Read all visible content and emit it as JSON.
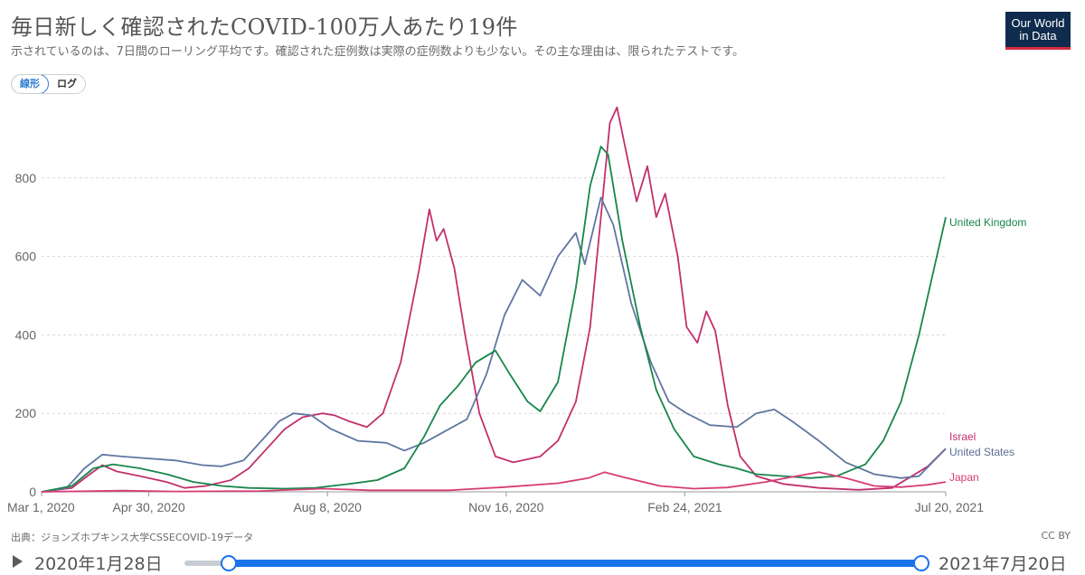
{
  "header": {
    "title": "毎日新しく確認されたCOVID-100万人あたり19件",
    "subtitle": "示されているのは、7日間のローリング平均です。確認された症例数は実際の症例数よりも少ない。その主な理由は、限られたテストです。",
    "logo_line1": "Our World",
    "logo_line2": "in Data"
  },
  "scale_toggle": {
    "linear_label": "線形",
    "log_label": "ログ",
    "active": "linear"
  },
  "footer": {
    "source": "出典：ジョンズホプキンス大学CSSECOVID-19データ",
    "license": "CC BY"
  },
  "timeline": {
    "start_label": "2020年1月28日",
    "end_label": "2021年7月20日"
  },
  "colors": {
    "United Kingdom": "#18864b",
    "Israel": "#c2306c",
    "United States": "#6076a0",
    "Japan": "#d73c76",
    "grid": "#d8d8d8",
    "axis_text": "#666666"
  },
  "chart_data": {
    "type": "line",
    "title": "毎日新しく確認されたCOVID-100万人あたり19件",
    "xlabel": "",
    "ylabel": "",
    "x_range": [
      "2020-03-01",
      "2021-07-20"
    ],
    "ylim": [
      0,
      1000
    ],
    "y_ticks": [
      0,
      200,
      400,
      600,
      800
    ],
    "x_ticks": [
      "Mar 1, 2020",
      "Apr 30, 2020",
      "Aug 8, 2020",
      "Nov 16, 2020",
      "Feb 24, 2021",
      "Jul 20, 2021"
    ],
    "x_tick_dates": [
      "2020-03-01",
      "2020-04-30",
      "2020-08-08",
      "2020-11-16",
      "2021-02-24",
      "2021-07-20"
    ],
    "grid": "horizontal-dashed",
    "legend": "inline-end-labels",
    "series": [
      {
        "name": "Israel",
        "points": [
          [
            "2020-03-01",
            0
          ],
          [
            "2020-03-18",
            10
          ],
          [
            "2020-03-28",
            45
          ],
          [
            "2020-04-04",
            68
          ],
          [
            "2020-04-12",
            52
          ],
          [
            "2020-04-25",
            40
          ],
          [
            "2020-05-10",
            25
          ],
          [
            "2020-05-20",
            10
          ],
          [
            "2020-06-01",
            15
          ],
          [
            "2020-06-15",
            30
          ],
          [
            "2020-06-25",
            60
          ],
          [
            "2020-07-05",
            110
          ],
          [
            "2020-07-15",
            160
          ],
          [
            "2020-07-25",
            190
          ],
          [
            "2020-08-05",
            200
          ],
          [
            "2020-08-12",
            195
          ],
          [
            "2020-08-20",
            180
          ],
          [
            "2020-08-30",
            165
          ],
          [
            "2020-09-08",
            200
          ],
          [
            "2020-09-18",
            330
          ],
          [
            "2020-09-28",
            560
          ],
          [
            "2020-10-04",
            720
          ],
          [
            "2020-10-08",
            640
          ],
          [
            "2020-10-12",
            670
          ],
          [
            "2020-10-18",
            570
          ],
          [
            "2020-10-24",
            400
          ],
          [
            "2020-11-01",
            200
          ],
          [
            "2020-11-10",
            90
          ],
          [
            "2020-11-20",
            75
          ],
          [
            "2020-12-05",
            90
          ],
          [
            "2020-12-15",
            130
          ],
          [
            "2020-12-25",
            230
          ],
          [
            "2021-01-02",
            420
          ],
          [
            "2021-01-08",
            700
          ],
          [
            "2021-01-13",
            940
          ],
          [
            "2021-01-17",
            980
          ],
          [
            "2021-01-22",
            870
          ],
          [
            "2021-01-28",
            740
          ],
          [
            "2021-02-03",
            830
          ],
          [
            "2021-02-08",
            700
          ],
          [
            "2021-02-13",
            760
          ],
          [
            "2021-02-20",
            600
          ],
          [
            "2021-02-25",
            420
          ],
          [
            "2021-03-03",
            380
          ],
          [
            "2021-03-08",
            460
          ],
          [
            "2021-03-13",
            410
          ],
          [
            "2021-03-20",
            220
          ],
          [
            "2021-03-27",
            90
          ],
          [
            "2021-04-05",
            40
          ],
          [
            "2021-04-20",
            20
          ],
          [
            "2021-05-10",
            10
          ],
          [
            "2021-06-01",
            5
          ],
          [
            "2021-06-20",
            10
          ],
          [
            "2021-07-01",
            40
          ],
          [
            "2021-07-10",
            65
          ],
          [
            "2021-07-20",
            110
          ]
        ]
      },
      {
        "name": "United States",
        "points": [
          [
            "2020-03-01",
            0
          ],
          [
            "2020-03-15",
            10
          ],
          [
            "2020-03-25",
            60
          ],
          [
            "2020-04-04",
            95
          ],
          [
            "2020-04-15",
            90
          ],
          [
            "2020-04-30",
            85
          ],
          [
            "2020-05-15",
            80
          ],
          [
            "2020-05-30",
            68
          ],
          [
            "2020-06-10",
            65
          ],
          [
            "2020-06-22",
            80
          ],
          [
            "2020-07-02",
            130
          ],
          [
            "2020-07-12",
            180
          ],
          [
            "2020-07-20",
            200
          ],
          [
            "2020-07-30",
            195
          ],
          [
            "2020-08-10",
            160
          ],
          [
            "2020-08-25",
            130
          ],
          [
            "2020-09-10",
            125
          ],
          [
            "2020-09-20",
            105
          ],
          [
            "2020-10-01",
            125
          ],
          [
            "2020-10-15",
            160
          ],
          [
            "2020-10-25",
            185
          ],
          [
            "2020-11-05",
            300
          ],
          [
            "2020-11-15",
            450
          ],
          [
            "2020-11-25",
            540
          ],
          [
            "2020-12-05",
            500
          ],
          [
            "2020-12-15",
            600
          ],
          [
            "2020-12-25",
            660
          ],
          [
            "2020-12-30",
            580
          ],
          [
            "2021-01-08",
            750
          ],
          [
            "2021-01-15",
            680
          ],
          [
            "2021-01-25",
            480
          ],
          [
            "2021-02-05",
            330
          ],
          [
            "2021-02-15",
            230
          ],
          [
            "2021-02-25",
            200
          ],
          [
            "2021-03-10",
            170
          ],
          [
            "2021-03-25",
            165
          ],
          [
            "2021-04-05",
            200
          ],
          [
            "2021-04-15",
            210
          ],
          [
            "2021-04-25",
            180
          ],
          [
            "2021-05-10",
            130
          ],
          [
            "2021-05-25",
            75
          ],
          [
            "2021-06-10",
            45
          ],
          [
            "2021-06-25",
            35
          ],
          [
            "2021-07-05",
            40
          ],
          [
            "2021-07-20",
            110
          ]
        ]
      },
      {
        "name": "United Kingdom",
        "points": [
          [
            "2020-03-01",
            0
          ],
          [
            "2020-03-18",
            15
          ],
          [
            "2020-03-30",
            60
          ],
          [
            "2020-04-10",
            70
          ],
          [
            "2020-04-25",
            60
          ],
          [
            "2020-05-10",
            45
          ],
          [
            "2020-05-25",
            25
          ],
          [
            "2020-06-10",
            15
          ],
          [
            "2020-06-25",
            10
          ],
          [
            "2020-07-15",
            8
          ],
          [
            "2020-08-01",
            10
          ],
          [
            "2020-08-20",
            20
          ],
          [
            "2020-09-05",
            30
          ],
          [
            "2020-09-20",
            60
          ],
          [
            "2020-10-01",
            140
          ],
          [
            "2020-10-10",
            220
          ],
          [
            "2020-10-20",
            270
          ],
          [
            "2020-10-30",
            330
          ],
          [
            "2020-11-10",
            360
          ],
          [
            "2020-11-18",
            300
          ],
          [
            "2020-11-28",
            230
          ],
          [
            "2020-12-05",
            205
          ],
          [
            "2020-12-15",
            280
          ],
          [
            "2020-12-25",
            520
          ],
          [
            "2021-01-02",
            780
          ],
          [
            "2021-01-08",
            880
          ],
          [
            "2021-01-12",
            860
          ],
          [
            "2021-01-20",
            640
          ],
          [
            "2021-01-30",
            420
          ],
          [
            "2021-02-08",
            260
          ],
          [
            "2021-02-18",
            160
          ],
          [
            "2021-03-01",
            90
          ],
          [
            "2021-03-15",
            70
          ],
          [
            "2021-03-25",
            60
          ],
          [
            "2021-04-05",
            45
          ],
          [
            "2021-04-20",
            40
          ],
          [
            "2021-05-05",
            35
          ],
          [
            "2021-05-20",
            40
          ],
          [
            "2021-06-05",
            70
          ],
          [
            "2021-06-15",
            130
          ],
          [
            "2021-06-25",
            230
          ],
          [
            "2021-07-05",
            400
          ],
          [
            "2021-07-15",
            600
          ],
          [
            "2021-07-20",
            700
          ]
        ]
      },
      {
        "name": "Japan",
        "points": [
          [
            "2020-03-01",
            0
          ],
          [
            "2020-04-15",
            3
          ],
          [
            "2020-05-15",
            1
          ],
          [
            "2020-07-01",
            2
          ],
          [
            "2020-08-05",
            8
          ],
          [
            "2020-09-01",
            4
          ],
          [
            "2020-10-15",
            4
          ],
          [
            "2020-11-15",
            12
          ],
          [
            "2020-12-15",
            22
          ],
          [
            "2021-01-01",
            35
          ],
          [
            "2021-01-10",
            50
          ],
          [
            "2021-01-20",
            38
          ],
          [
            "2021-02-10",
            15
          ],
          [
            "2021-03-01",
            8
          ],
          [
            "2021-03-20",
            11
          ],
          [
            "2021-04-10",
            25
          ],
          [
            "2021-04-25",
            38
          ],
          [
            "2021-05-10",
            50
          ],
          [
            "2021-05-25",
            35
          ],
          [
            "2021-06-10",
            15
          ],
          [
            "2021-06-25",
            12
          ],
          [
            "2021-07-10",
            18
          ],
          [
            "2021-07-20",
            25
          ]
        ]
      }
    ]
  }
}
